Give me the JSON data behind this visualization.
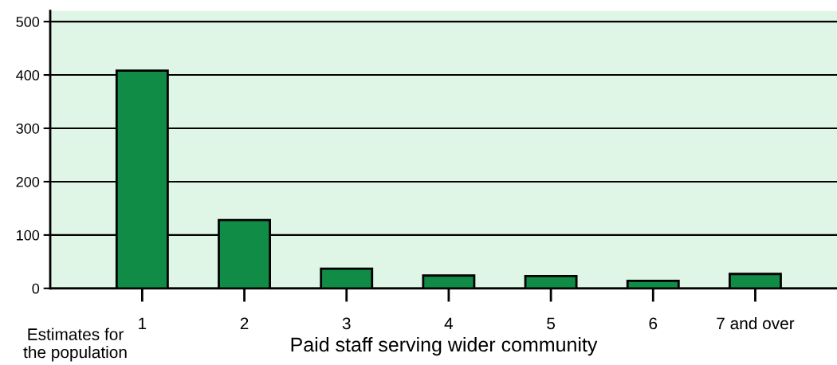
{
  "chart_data": {
    "type": "bar",
    "xlabel": "Paid staff serving wider community",
    "categories": [
      "1",
      "2",
      "3",
      "4",
      "5",
      "6",
      "7 and over"
    ],
    "values": [
      408,
      128,
      37,
      24,
      23,
      14,
      27
    ],
    "color": "#118c46",
    "ylim": [
      0,
      520
    ],
    "yticks": [
      0,
      100,
      200,
      300,
      400,
      500
    ],
    "grid": "y",
    "legend": false,
    "annotations": [
      "Estimates for\nthe population"
    ]
  }
}
